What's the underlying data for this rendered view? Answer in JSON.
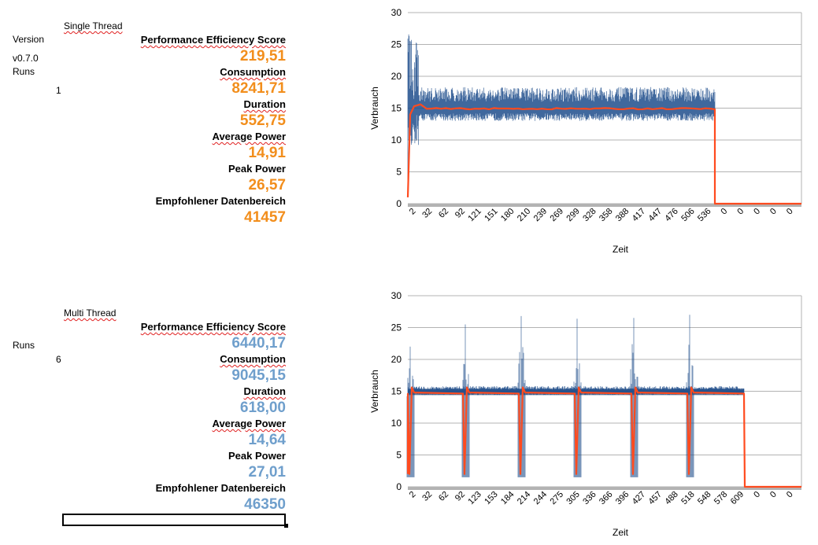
{
  "single": {
    "header": "Single Thread",
    "version_label": "Version",
    "version_value": "v0.7.0",
    "runs_label": "Runs",
    "runs_value": "1",
    "metrics": [
      {
        "label": "Performance Efficiency Score",
        "value": "219,51"
      },
      {
        "label": "Consumption",
        "value": "8241,71"
      },
      {
        "label": "Duration",
        "value": "552,75"
      },
      {
        "label": "Average Power",
        "value": "14,91"
      },
      {
        "label": "Peak Power",
        "value": "26,57"
      },
      {
        "label": "Empfohlener Datenbereich",
        "value": "41457"
      }
    ],
    "value_color": "#f28e1c"
  },
  "multi": {
    "header": "Multi Thread",
    "runs_label": "Runs",
    "runs_value": "6",
    "metrics": [
      {
        "label": "Performance Efficiency Score",
        "value": "6440,17"
      },
      {
        "label": "Consumption",
        "value": "9045,15"
      },
      {
        "label": "Duration",
        "value": "618,00"
      },
      {
        "label": "Average Power",
        "value": "14,64"
      },
      {
        "label": "Peak Power",
        "value": "27,01"
      },
      {
        "label": "Empfohlener Datenbereich",
        "value": "46350"
      }
    ],
    "value_color": "#6f9fcc"
  },
  "chart_data": [
    {
      "type": "line",
      "xlabel": "Zeit",
      "ylabel": "Verbrauch",
      "ylim": [
        0,
        30
      ],
      "yticks": [
        0,
        5,
        10,
        15,
        20,
        25,
        30
      ],
      "grid": true,
      "x_tick_labels": [
        "2",
        "32",
        "62",
        "92",
        "121",
        "151",
        "180",
        "210",
        "239",
        "269",
        "299",
        "328",
        "358",
        "388",
        "417",
        "447",
        "476",
        "506",
        "536",
        "0",
        "0",
        "0",
        "0",
        "0"
      ],
      "series": [
        {
          "color": "#1f4e8c",
          "style": "raw",
          "typical_range": [
            13,
            18
          ],
          "max": 26.57,
          "active_x_end": 552
        },
        {
          "color": "#ff4b1f",
          "style": "moving-average",
          "level": 14.91,
          "active_x_end": 552
        }
      ]
    },
    {
      "type": "line",
      "xlabel": "Zeit",
      "ylabel": "Verbrauch",
      "ylim": [
        0,
        30
      ],
      "yticks": [
        0,
        5,
        10,
        15,
        20,
        25,
        30
      ],
      "grid": true,
      "x_tick_labels": [
        "2",
        "32",
        "62",
        "92",
        "123",
        "153",
        "184",
        "214",
        "244",
        "275",
        "305",
        "336",
        "366",
        "396",
        "427",
        "457",
        "488",
        "518",
        "548",
        "578",
        "609",
        "0",
        "0",
        "0"
      ],
      "series": [
        {
          "color": "#1f4e8c",
          "style": "raw",
          "level": 15,
          "spike_peaks": [
            22,
            25.5,
            26.8,
            26.4,
            26.5,
            27.01
          ],
          "active_x_end": 618
        },
        {
          "color": "#ff4b1f",
          "style": "moving-average",
          "level": 14.64,
          "run_starts_x": [
            2,
            121,
            215,
            317,
            421,
            524
          ],
          "active_x_end": 618
        }
      ]
    }
  ]
}
